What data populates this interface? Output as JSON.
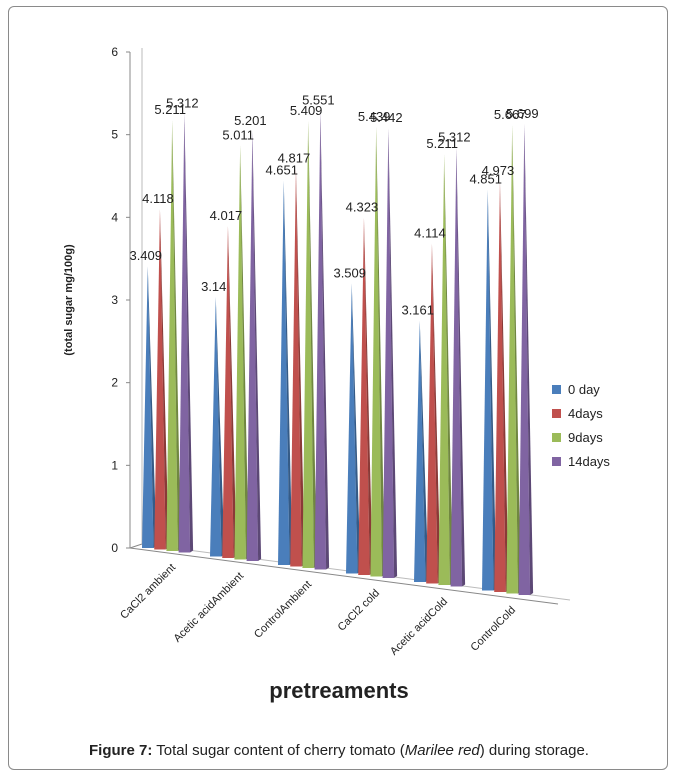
{
  "chart_data": {
    "type": "bar",
    "categories": [
      "CaCl2 ambient",
      "Acetic acidAmbient",
      "ControlAmbient",
      "CaCl2 cold",
      "Acetic acidCold",
      "ControlCold"
    ],
    "series": [
      {
        "name": "0 day",
        "color": "#4a7ebb",
        "values": [
          3.409,
          3.14,
          4.651,
          3.509,
          3.161,
          4.851
        ]
      },
      {
        "name": "4days",
        "color": "#c0504d",
        "values": [
          4.118,
          4.017,
          4.817,
          4.323,
          4.114,
          4.973
        ]
      },
      {
        "name": "9days",
        "color": "#9bbb59",
        "values": [
          5.211,
          5.011,
          5.409,
          5.439,
          5.211,
          5.667
        ]
      },
      {
        "name": "14days",
        "color": "#8064a2",
        "values": [
          5.312,
          5.201,
          5.551,
          5.442,
          5.312,
          5.699
        ]
      }
    ],
    "ylabel": "(total sugar mg/100g)",
    "xlabel": "pretreaments",
    "ylim": [
      0,
      6
    ],
    "yticks": [
      0,
      1,
      2,
      3,
      4,
      5,
      6
    ],
    "legend": "right",
    "grid": false
  },
  "caption": {
    "figure_label": "Figure 7:",
    "text_before": " Total sugar content of cherry tomato (",
    "italic": "Marilee red",
    "text_after": ") during storage."
  }
}
